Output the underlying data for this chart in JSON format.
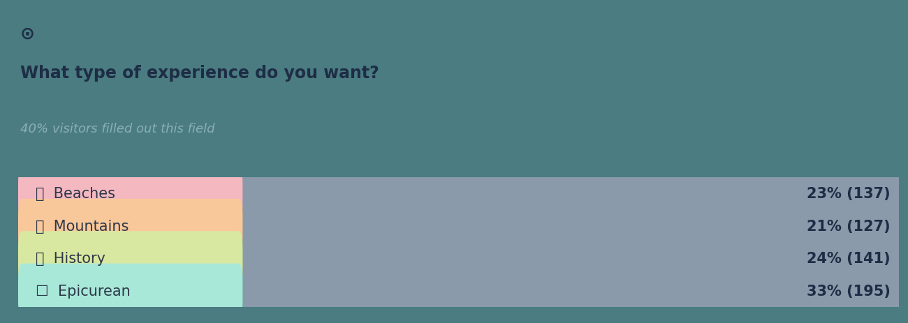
{
  "title": "What type of experience do you want?",
  "subtitle": "40% visitors filled out this field",
  "checkmark": "✓",
  "background_color": "#4a7c82",
  "bar_bg_color": "#8a9aaa",
  "label_colors": [
    "#f4b8c1",
    "#f9c89a",
    "#d9e8a0",
    "#a8e8d8"
  ],
  "categories": [
    "Beaches",
    "Mountains",
    "History",
    "Epicurean"
  ],
  "emojis": [
    "🏖️",
    "⛰️",
    "🗼",
    "☐"
  ],
  "percentages": [
    23,
    21,
    24,
    33
  ],
  "counts": [
    137,
    127,
    141,
    195
  ],
  "label_text_color": "#2d3748",
  "bar_text_color": "#1e2d45",
  "title_color": "#1e2d45",
  "subtitle_color": "#8ab0b5",
  "figsize": [
    13.0,
    4.64
  ],
  "dpi": 100
}
